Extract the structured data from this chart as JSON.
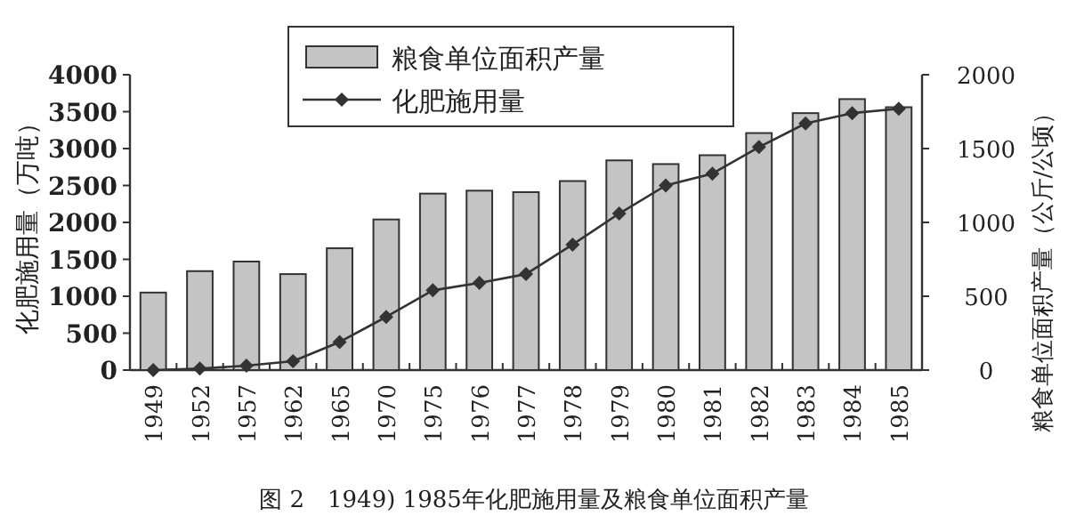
{
  "chart_data": {
    "type": "bar",
    "title": "图 2　1949) 1985年化肥施用量及粮食单位面积产量",
    "ylabel": "化肥施用量（万吨）",
    "y2label": "粮食单位面积产量（公斤/公顷）",
    "categories": [
      "1949",
      "1952",
      "1957",
      "1962",
      "1965",
      "1970",
      "1975",
      "1976",
      "1977",
      "1978",
      "1979",
      "1980",
      "1981",
      "1982",
      "1983",
      "1984",
      "1985"
    ],
    "series": [
      {
        "name": "粮食单位面积产量",
        "color": "#c4c4c4",
        "values": [
          1050,
          1340,
          1470,
          1300,
          1650,
          2040,
          2390,
          2430,
          2410,
          2560,
          2840,
          2790,
          2910,
          3210,
          3480,
          3670,
          3560
        ]
      },
      {
        "name": "化肥施用量",
        "type": "line",
        "axis": "y2",
        "color": "#333333",
        "marker": "diamond",
        "values": [
          0,
          10,
          30,
          60,
          190,
          360,
          540,
          590,
          650,
          850,
          1060,
          1250,
          1330,
          1510,
          1670,
          1740,
          1770
        ]
      }
    ],
    "ylim": [
      0,
      4000
    ],
    "yticks": [
      0,
      500,
      1000,
      1500,
      2000,
      2500,
      3000,
      3500,
      4000
    ],
    "y2lim": [
      0,
      2000
    ],
    "y2ticks": [
      0,
      500,
      1000,
      1500,
      2000
    ],
    "legend": "top",
    "grid": false
  }
}
